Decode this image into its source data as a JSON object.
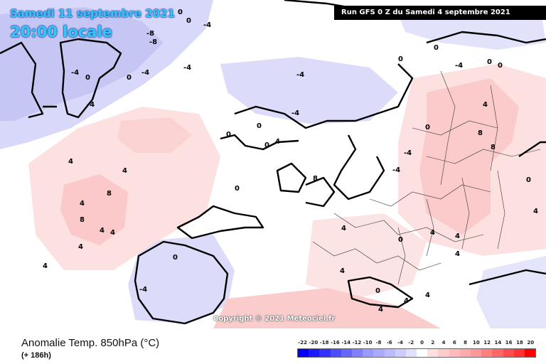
{
  "header": {
    "valid_date": "Samedi 11 septembre 2021",
    "valid_time": "20:00 locale",
    "run_info": "Run GFS 0 Z du Samedi 4 septembre 2021"
  },
  "copyright": "Copyright © 2021 Meteociel.fr",
  "footer": {
    "parameter": "Anomalie Temp. 850hPa (°C)",
    "lead_time": "(+ 186h)"
  },
  "legend": {
    "values": [
      "-22",
      "-20",
      "-18",
      "-16",
      "-14",
      "-12",
      "-10",
      "-8",
      "-6",
      "-4",
      "-2",
      "0",
      "2",
      "4",
      "6",
      "8",
      "10",
      "12",
      "14",
      "16",
      "18",
      "20"
    ],
    "colors": [
      "#0000ff",
      "#1a1aff",
      "#3333ff",
      "#4d4dff",
      "#6666ff",
      "#7f7fff",
      "#9999ff",
      "#aaaaff",
      "#bbbbff",
      "#ccccff",
      "#e0e0ff",
      "#ffffff",
      "#ffe0e0",
      "#ffcccc",
      "#ffbbbb",
      "#ffaaaa",
      "#ff9999",
      "#ff7f7f",
      "#ff6666",
      "#ff4d4d",
      "#ff3333",
      "#ff0000"
    ]
  },
  "contour_labels": [
    "0",
    "-4",
    "0",
    "-8",
    "-8",
    "-4",
    "-4",
    "0",
    "0",
    "-4",
    "-4",
    "4",
    "4",
    "8",
    "4",
    "8",
    "4",
    "4",
    "4",
    "0",
    "0",
    "-4",
    "0",
    "4",
    "8",
    "8",
    "4",
    "0",
    "0",
    "-4",
    "4",
    "0",
    "0",
    "-4",
    "-4",
    "-4",
    "0",
    "4",
    "4",
    "-4",
    "4",
    "0",
    "0",
    "0",
    "8",
    "0",
    "4",
    "4",
    "0",
    "4",
    "4",
    "4",
    "4"
  ]
}
